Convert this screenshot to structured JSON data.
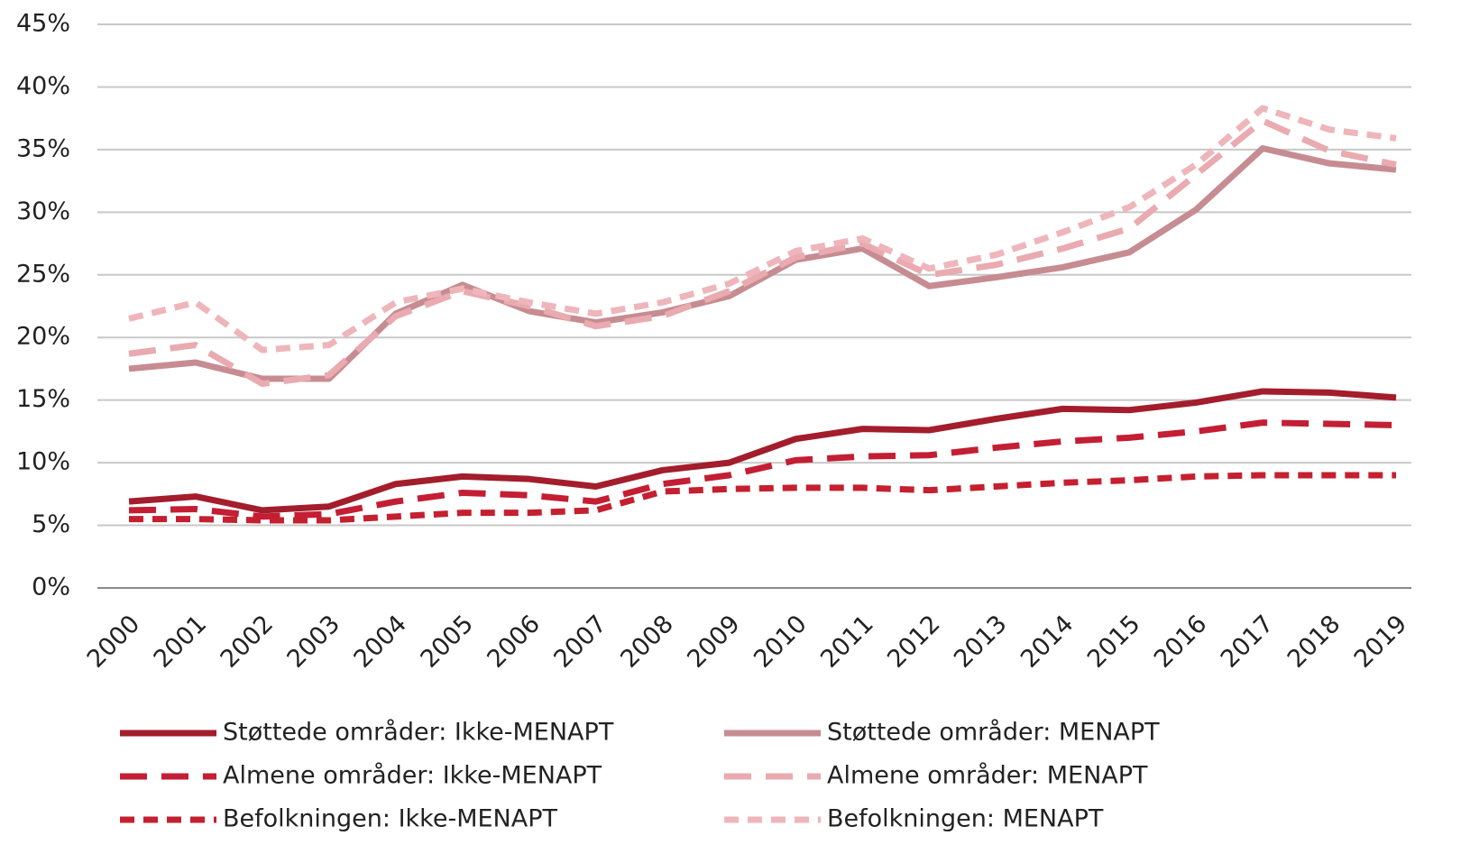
{
  "chart_data": {
    "type": "line",
    "categories": [
      "2000",
      "2001",
      "2002",
      "2003",
      "2004",
      "2005",
      "2006",
      "2007",
      "2008",
      "2009",
      "2010",
      "2011",
      "2012",
      "2013",
      "2014",
      "2015",
      "2016",
      "2017",
      "2018",
      "2019"
    ],
    "ylim": [
      0,
      45
    ],
    "yticks": [
      {
        "value": 0,
        "label": "0%"
      },
      {
        "value": 5,
        "label": "5%"
      },
      {
        "value": 10,
        "label": "10%"
      },
      {
        "value": 15,
        "label": "15%"
      },
      {
        "value": 20,
        "label": "20%"
      },
      {
        "value": 25,
        "label": "25%"
      },
      {
        "value": 30,
        "label": "30%"
      },
      {
        "value": 35,
        "label": "35%"
      },
      {
        "value": 40,
        "label": "40%"
      },
      {
        "value": 45,
        "label": "45%"
      }
    ],
    "grid": true,
    "series": [
      {
        "name": "Støttede områder: Ikke-MENAPT",
        "color": "#a31d2c",
        "dash": "solid",
        "values": [
          6.9,
          7.3,
          6.2,
          6.5,
          8.3,
          8.9,
          8.7,
          8.1,
          9.4,
          10.0,
          11.9,
          12.7,
          12.6,
          13.5,
          14.3,
          14.2,
          14.8,
          15.7,
          15.6,
          15.2
        ]
      },
      {
        "name": "Almene områder: Ikke-MENAPT",
        "color": "#c41e34",
        "dash": "long",
        "values": [
          6.2,
          6.3,
          5.7,
          5.9,
          6.9,
          7.6,
          7.4,
          6.9,
          8.3,
          9.0,
          10.2,
          10.5,
          10.6,
          11.2,
          11.7,
          12.0,
          12.5,
          13.2,
          13.1,
          13.0
        ]
      },
      {
        "name": "Befolkningen: Ikke-MENAPT",
        "color": "#c4202f",
        "dash": "short",
        "values": [
          5.5,
          5.5,
          5.4,
          5.4,
          5.7,
          6.0,
          6.0,
          6.2,
          7.7,
          7.9,
          8.0,
          8.0,
          7.8,
          8.1,
          8.4,
          8.6,
          8.9,
          9.0,
          9.0,
          9.0
        ]
      },
      {
        "name": "Støttede områder: MENAPT",
        "color": "#c68c92",
        "dash": "solid",
        "values": [
          17.5,
          18.0,
          16.7,
          16.7,
          21.9,
          24.2,
          22.1,
          21.2,
          22.0,
          23.3,
          26.2,
          27.1,
          24.1,
          24.8,
          25.6,
          26.8,
          30.2,
          35.1,
          33.9,
          33.4
        ]
      },
      {
        "name": "Almene områder: MENAPT",
        "color": "#e9aab0",
        "dash": "long",
        "values": [
          18.7,
          19.4,
          16.3,
          17.0,
          21.7,
          23.7,
          22.5,
          20.9,
          21.7,
          23.7,
          26.4,
          27.5,
          25.0,
          25.8,
          27.1,
          28.7,
          33.0,
          37.3,
          34.9,
          33.8
        ]
      },
      {
        "name": "Befolkningen: MENAPT",
        "color": "#eeb5ba",
        "dash": "short",
        "values": [
          21.5,
          22.8,
          19.0,
          19.4,
          22.8,
          23.9,
          22.8,
          21.9,
          22.8,
          24.3,
          26.9,
          27.9,
          25.5,
          26.6,
          28.4,
          30.4,
          33.8,
          38.3,
          36.6,
          35.9
        ]
      }
    ]
  }
}
